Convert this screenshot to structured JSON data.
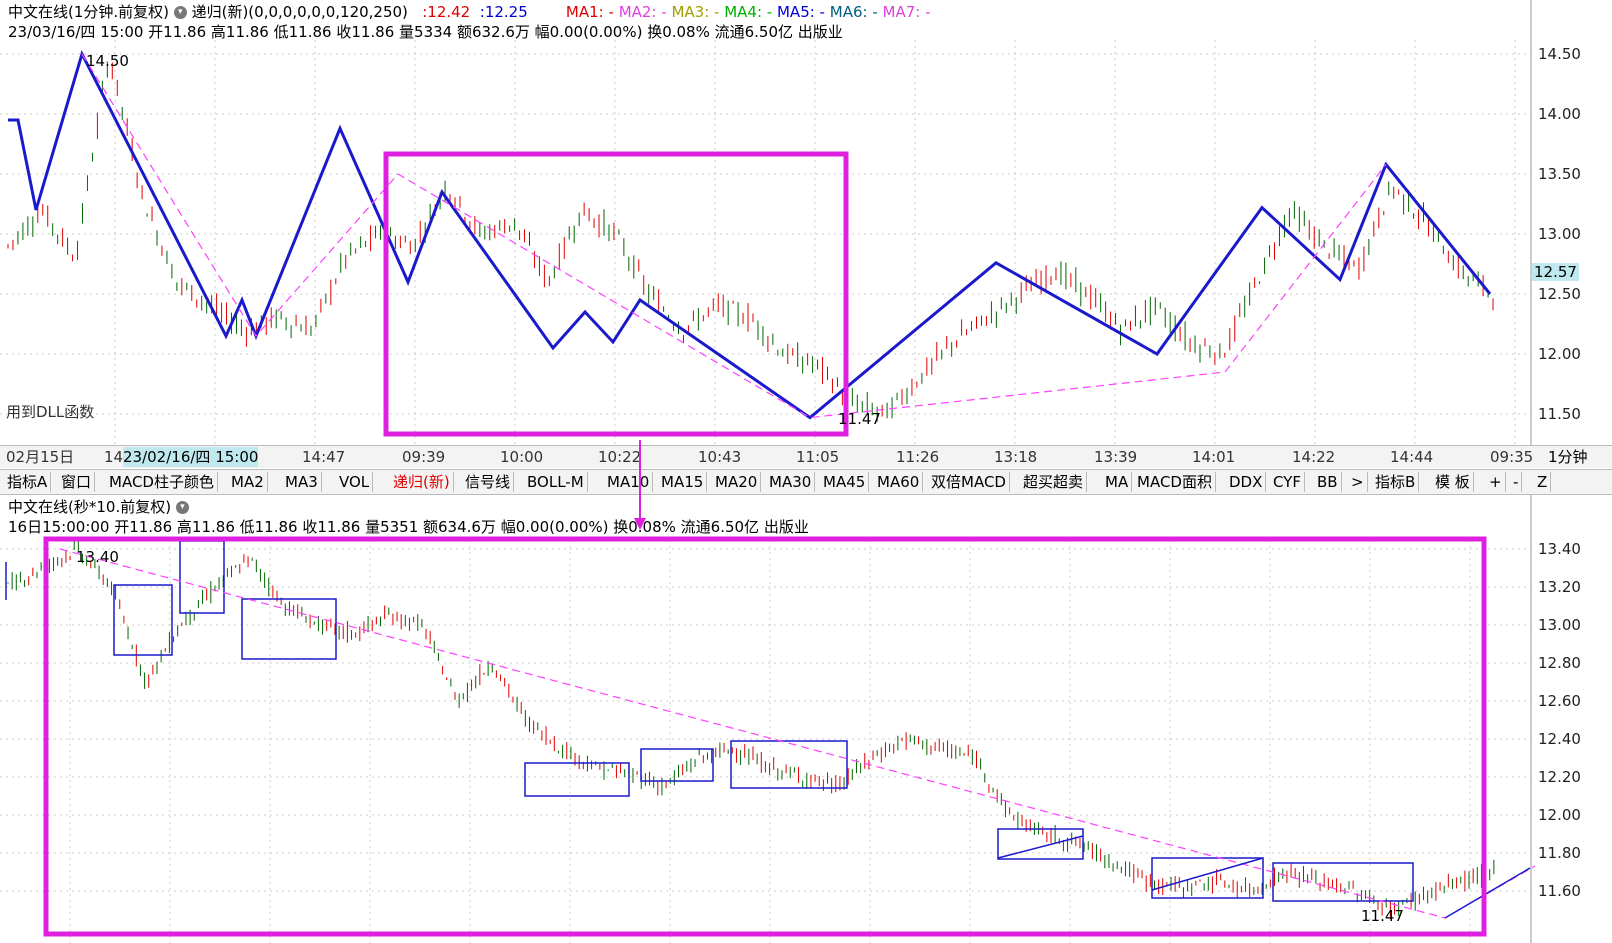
{
  "top_panel": {
    "title": "中文在线(1分钟.前复权)",
    "indicator": "递归(新)(0,0,0,0,0,0,120,250)",
    "val1": ":12.42",
    "val2": ":12.25",
    "ma_labels": [
      "MA1: -",
      "MA2: -",
      "MA3: -",
      "MA4: -",
      "MA5: -",
      "MA6: -",
      "MA7: -"
    ],
    "info_line": "23/03/16/四 15:00 开11.86 高11.86 低11.86 收11.86 量5334 额632.6万 幅0.00(0.00%) 换0.08% 流通6.50亿 出版业",
    "dll_note": "用到DLL函数",
    "peak_label": "14.50",
    "trough_label": "11.47",
    "price_badge": "12.57",
    "y_ticks": [
      "14.50",
      "14.00",
      "13.50",
      "13.00",
      "12.50",
      "12.00",
      "11.50"
    ]
  },
  "x_axis": {
    "labels": [
      "02月15日",
      "14",
      "14:47",
      "09:39",
      "10:00",
      "10:22",
      "10:43",
      "11:05",
      "11:26",
      "13:18",
      "13:39",
      "14:01",
      "14:22",
      "14:44",
      "09:35"
    ],
    "highlight": "23/02/16/四 15:00",
    "period": "1分钟"
  },
  "toolbar": {
    "items": [
      "指标A",
      "窗口",
      "MACD柱子颜色",
      "MA2",
      "MA3",
      "VOL",
      "递归(新)",
      "信号线",
      "BOLL-M",
      "MA10",
      "MA15",
      "MA20",
      "MA30",
      "MA45",
      "MA60",
      "双倍MACD",
      "超买超卖",
      "MA",
      "MACD面积",
      "DDX",
      "CYF",
      "BB",
      ">",
      "指标B",
      "模 板",
      "+",
      "-",
      "Z"
    ],
    "active": "递归(新)"
  },
  "bottom_panel": {
    "title": "中文在线(秒*10.前复权)",
    "info_line": "16日15:00:00 开11.86 高11.86 低11.86 收11.86 量5351 额634.6万 幅0.00(0.00%) 换0.08% 流通6.50亿 出版业",
    "peak_label": "13.40",
    "trough_label": "11.47",
    "y_ticks": [
      "13.40",
      "13.20",
      "13.00",
      "12.80",
      "12.60",
      "12.40",
      "12.20",
      "12.00",
      "11.80",
      "11.60"
    ]
  },
  "colors": {
    "up": "#e00000",
    "down": "#007000",
    "zigzag": "#1a1acc",
    "highlight_box": "#e020e0",
    "trend": "#ff40ff"
  }
}
